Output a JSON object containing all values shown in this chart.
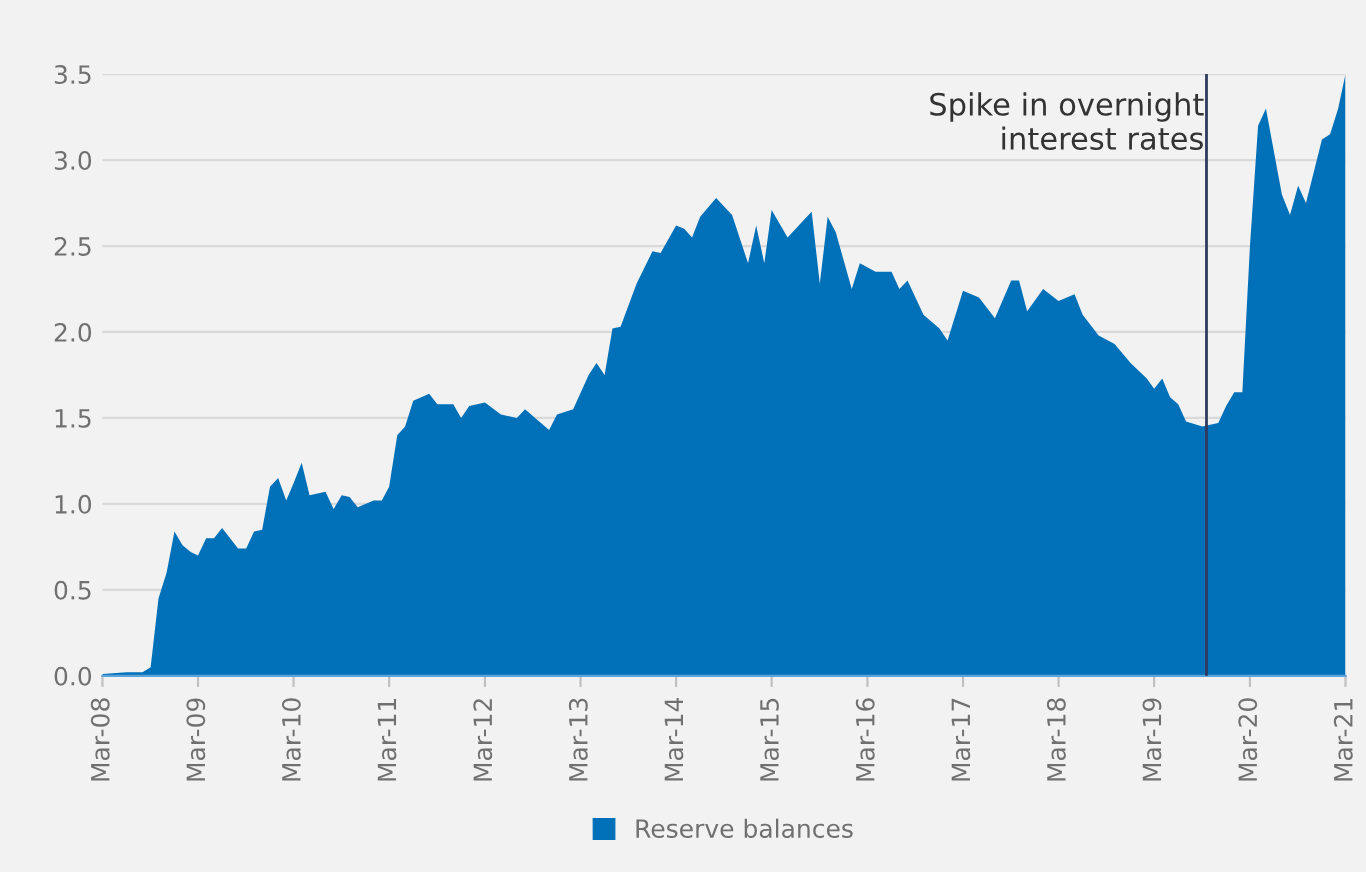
{
  "chart_data": {
    "type": "area",
    "x": [
      "2008-03",
      "2008-06",
      "2008-08",
      "2008-09",
      "2008-10",
      "2008-11",
      "2008-12",
      "2009-01",
      "2009-02",
      "2009-03",
      "2009-04",
      "2009-05",
      "2009-06",
      "2009-08",
      "2009-09",
      "2009-10",
      "2009-11",
      "2009-12",
      "2010-01",
      "2010-02",
      "2010-03",
      "2010-04",
      "2010-05",
      "2010-07",
      "2010-08",
      "2010-09",
      "2010-10",
      "2010-11",
      "2011-01",
      "2011-02",
      "2011-03",
      "2011-04",
      "2011-05",
      "2011-06",
      "2011-08",
      "2011-09",
      "2011-11",
      "2011-12",
      "2012-01",
      "2012-03",
      "2012-05",
      "2012-07",
      "2012-08",
      "2012-10",
      "2012-11",
      "2012-12",
      "2013-02",
      "2013-04",
      "2013-05",
      "2013-06",
      "2013-07",
      "2013-08",
      "2013-10",
      "2013-12",
      "2014-01",
      "2014-03",
      "2014-04",
      "2014-05",
      "2014-06",
      "2014-08",
      "2014-10",
      "2014-12",
      "2015-01",
      "2015-02",
      "2015-03",
      "2015-05",
      "2015-07",
      "2015-08",
      "2015-09",
      "2015-10",
      "2015-11",
      "2016-01",
      "2016-02",
      "2016-04",
      "2016-06",
      "2016-07",
      "2016-08",
      "2016-10",
      "2016-12",
      "2017-01",
      "2017-03",
      "2017-05",
      "2017-07",
      "2017-09",
      "2017-10",
      "2017-11",
      "2018-01",
      "2018-03",
      "2018-05",
      "2018-06",
      "2018-08",
      "2018-10",
      "2018-12",
      "2019-02",
      "2019-03",
      "2019-04",
      "2019-05",
      "2019-06",
      "2019-07",
      "2019-09",
      "2019-10",
      "2019-11",
      "2019-12",
      "2020-01",
      "2020-02",
      "2020-03",
      "2020-04",
      "2020-05",
      "2020-07",
      "2020-08",
      "2020-09",
      "2020-10",
      "2020-12",
      "2021-01",
      "2021-02",
      "2021-03"
    ],
    "series": [
      {
        "name": "Reserve balances",
        "color": "#0070b8",
        "values": [
          0.01,
          0.02,
          0.02,
          0.05,
          0.45,
          0.6,
          0.84,
          0.76,
          0.72,
          0.7,
          0.8,
          0.8,
          0.86,
          0.74,
          0.74,
          0.84,
          0.85,
          1.1,
          1.15,
          1.02,
          1.12,
          1.24,
          1.05,
          1.07,
          0.97,
          1.05,
          1.04,
          0.98,
          1.02,
          1.02,
          1.1,
          1.4,
          1.45,
          1.6,
          1.64,
          1.58,
          1.58,
          1.5,
          1.57,
          1.59,
          1.52,
          1.5,
          1.55,
          1.47,
          1.43,
          1.52,
          1.55,
          1.75,
          1.82,
          1.75,
          2.02,
          2.03,
          2.28,
          2.47,
          2.46,
          2.62,
          2.6,
          2.55,
          2.67,
          2.78,
          2.68,
          2.4,
          2.62,
          2.4,
          2.71,
          2.55,
          2.65,
          2.7,
          2.28,
          2.67,
          2.58,
          2.25,
          2.4,
          2.35,
          2.35,
          2.25,
          2.3,
          2.1,
          2.02,
          1.95,
          2.24,
          2.2,
          2.08,
          2.3,
          2.3,
          2.12,
          2.25,
          2.18,
          2.22,
          2.1,
          1.98,
          1.93,
          1.82,
          1.73,
          1.67,
          1.73,
          1.62,
          1.58,
          1.48,
          1.45,
          1.46,
          1.47,
          1.57,
          1.65,
          1.65,
          2.5,
          3.2,
          3.3,
          2.8,
          2.68,
          2.85,
          2.75,
          3.12,
          3.15,
          3.3,
          3.5
        ]
      }
    ],
    "xlim": [
      "2008-03",
      "2021-03"
    ],
    "xticks": [
      {
        "value": "2008-03",
        "label": "Mar-08"
      },
      {
        "value": "2009-03",
        "label": "Mar-09"
      },
      {
        "value": "2010-03",
        "label": "Mar-10"
      },
      {
        "value": "2011-03",
        "label": "Mar-11"
      },
      {
        "value": "2012-03",
        "label": "Mar-12"
      },
      {
        "value": "2013-03",
        "label": "Mar-13"
      },
      {
        "value": "2014-03",
        "label": "Mar-14"
      },
      {
        "value": "2015-03",
        "label": "Mar-15"
      },
      {
        "value": "2016-03",
        "label": "Mar-16"
      },
      {
        "value": "2017-03",
        "label": "Mar-17"
      },
      {
        "value": "2018-03",
        "label": "Mar-18"
      },
      {
        "value": "2019-03",
        "label": "Mar-19"
      },
      {
        "value": "2020-03",
        "label": "Mar-20"
      },
      {
        "value": "2021-03",
        "label": "Mar-21"
      }
    ],
    "ylim": [
      0,
      3.5
    ],
    "yticks": [
      {
        "value": 0,
        "label": "0.0"
      },
      {
        "value": 0.5,
        "label": "0.5"
      },
      {
        "value": 1,
        "label": "1.0"
      },
      {
        "value": 1.5,
        "label": "1.5"
      },
      {
        "value": 2,
        "label": "2.0"
      },
      {
        "value": 2.5,
        "label": "2.5"
      },
      {
        "value": 3,
        "label": "3.0"
      },
      {
        "value": 3.5,
        "label": "3.5"
      }
    ],
    "ref_lines": [
      {
        "axis": "x",
        "value": "2019-09-17",
        "label": "Spike in overnight\ninterest rates",
        "color": "#2e3a5c"
      }
    ],
    "grid": "y",
    "legend": "bottom"
  }
}
